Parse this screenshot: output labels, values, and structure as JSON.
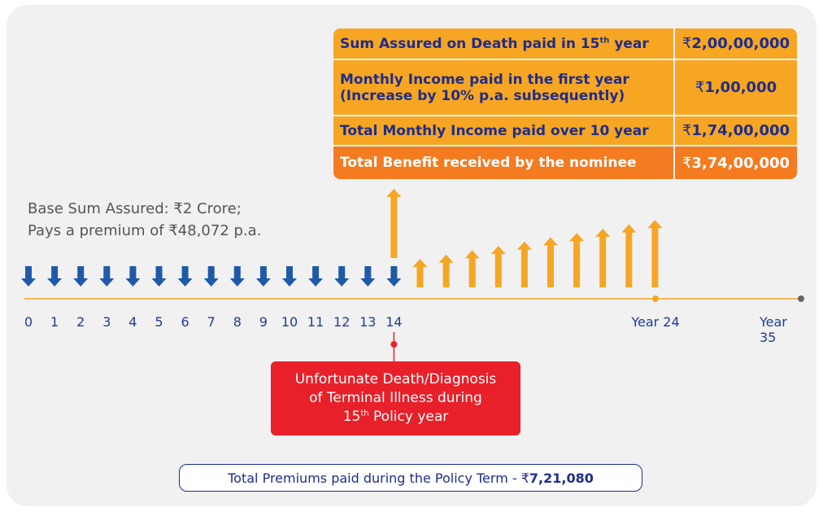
{
  "table": {
    "rows": [
      {
        "label": [
          "Sum Assured on Death paid in 15",
          "th",
          " year"
        ],
        "currency": "₹",
        "amount": "2,00,00,000"
      },
      {
        "label": [
          "Monthly Income paid in the first year",
          "(Increase by 10% p.a. subsequently)"
        ],
        "currency": "₹",
        "amount": "1,00,000"
      },
      {
        "label": [
          "Total Monthly Income paid over 10 year"
        ],
        "currency": "₹",
        "amount": "1,74,00,000"
      },
      {
        "label": [
          "Total Benefit received by the nominee"
        ],
        "currency": "₹",
        "amount": "3,74,00,000"
      }
    ]
  },
  "base_info": [
    "Base Sum Assured: ₹2 Crore;",
    "Pays a premium of ₹48,072 p.a."
  ],
  "timeline": {
    "years": [
      "0",
      "1",
      "2",
      "3",
      "4",
      "5",
      "6",
      "7",
      "8",
      "9",
      "10",
      "11",
      "12",
      "13",
      "14"
    ],
    "year24": "Year 24",
    "year35": "Year 35"
  },
  "event": [
    "Unfortunate Death/Diagnosis",
    "of Terminal Illness during",
    "15",
    "th",
    " Policy year"
  ],
  "total_premiums": {
    "text": "Total Premiums paid during the Policy Term - ",
    "currency": "₹",
    "amount": "7,21,080"
  }
}
